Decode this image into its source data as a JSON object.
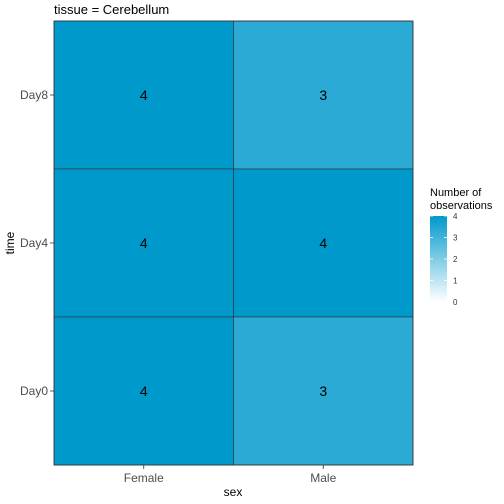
{
  "chart_data": {
    "type": "heatmap",
    "title": "tissue = Cerebellum",
    "xlabel": "sex",
    "ylabel": "time",
    "x_categories": [
      "Female",
      "Male"
    ],
    "y_categories": [
      "Day0",
      "Day4",
      "Day8"
    ],
    "cells": [
      {
        "x": "Female",
        "y": "Day8",
        "value": 4
      },
      {
        "x": "Male",
        "y": "Day8",
        "value": 3
      },
      {
        "x": "Female",
        "y": "Day4",
        "value": 4
      },
      {
        "x": "Male",
        "y": "Day4",
        "value": 4
      },
      {
        "x": "Female",
        "y": "Day0",
        "value": 4
      },
      {
        "x": "Male",
        "y": "Day0",
        "value": 3
      }
    ],
    "legend": {
      "title_lines": [
        "Number of",
        "observations"
      ],
      "range": [
        0,
        4
      ],
      "ticks": [
        0,
        1,
        2,
        3,
        4
      ],
      "color_low": "#ffffff",
      "color_high": "#0099cc"
    },
    "grid": false
  }
}
